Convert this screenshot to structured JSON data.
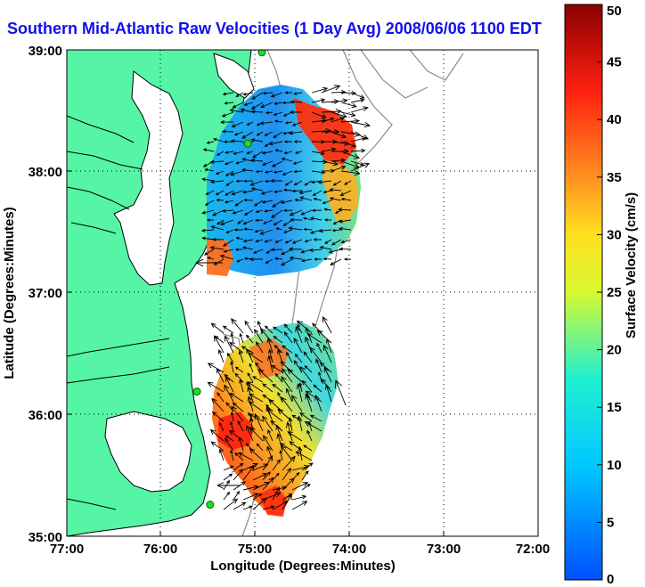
{
  "title": "Southern Mid-Atlantic Raw Velocities (1 Day Avg) 2008/06/06 1100 EDT",
  "map": {
    "xlabel": "Longitude (Degrees:Minutes)",
    "ylabel": "Latitude (Degrees:Minutes)",
    "x_ticks": [
      "77:00",
      "76:00",
      "75:00",
      "74:00",
      "73:00",
      "72:00"
    ],
    "y_ticks": [
      "39:00",
      "38:00",
      "37:00",
      "36:00",
      "35:00"
    ],
    "lon_range": [
      -77,
      -72
    ],
    "lat_range": [
      35,
      39
    ],
    "land_color": "#55f5a5",
    "grid": true
  },
  "colorbar": {
    "label": "Surface Velocity (cm/s)",
    "ticks": [
      "50",
      "45",
      "40",
      "35",
      "30",
      "25",
      "20",
      "15",
      "10",
      "5",
      "0"
    ],
    "range": [
      0,
      50
    ],
    "colormap": "jet"
  },
  "stations": [
    {
      "lon": -74.93,
      "lat": 38.98
    },
    {
      "lon": -75.08,
      "lat": 38.23
    },
    {
      "lon": -75.62,
      "lat": 36.19
    },
    {
      "lon": -75.48,
      "lat": 35.26
    }
  ]
}
